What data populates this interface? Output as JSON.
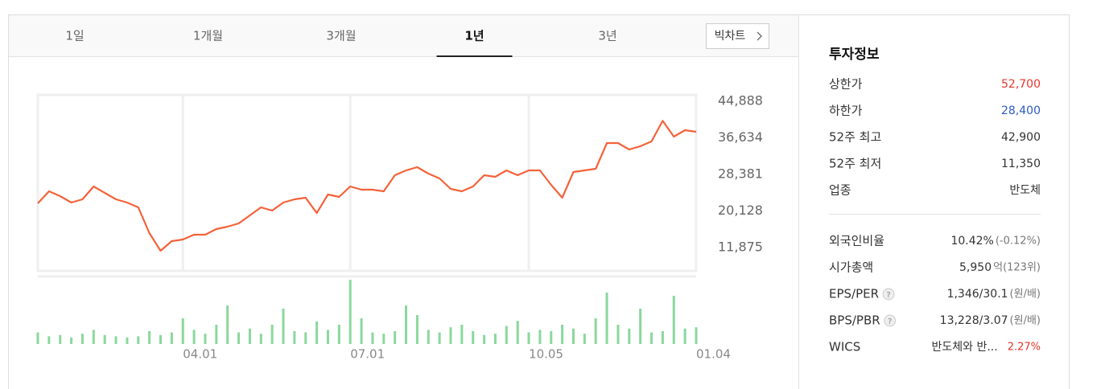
{
  "tabs": {
    "items": [
      "1일",
      "1개월",
      "3개월",
      "1년",
      "3년"
    ],
    "selected": 3,
    "button": "빅차트"
  },
  "chart_data": [
    {
      "type": "line",
      "color": "#f4623a",
      "categories": [
        null,
        null,
        null,
        null,
        null,
        null,
        null,
        null,
        null,
        null,
        null,
        null,
        null,
        "04.01",
        null,
        null,
        null,
        null,
        null,
        null,
        null,
        null,
        null,
        null,
        null,
        null,
        null,
        null,
        "07.01",
        null,
        null,
        null,
        null,
        null,
        null,
        null,
        null,
        null,
        null,
        null,
        null,
        null,
        null,
        null,
        "10.05",
        null,
        null,
        null,
        null,
        null,
        null,
        null,
        null,
        null,
        null,
        null,
        null,
        null,
        null,
        "01.04"
      ],
      "values": [
        21850,
        24570,
        23480,
        22030,
        22750,
        25660,
        24210,
        22750,
        22030,
        20940,
        15140,
        11150,
        13330,
        13690,
        14780,
        14780,
        16050,
        16590,
        17320,
        19130,
        20940,
        20220,
        22030,
        22750,
        23120,
        19670,
        23840,
        23300,
        25660,
        24940,
        24940,
        24570,
        28200,
        29290,
        30010,
        28560,
        27470,
        25110,
        24570,
        25660,
        28200,
        27840,
        29290,
        28200,
        29290,
        29290,
        26020,
        23120,
        28920,
        29290,
        29650,
        35460,
        35460,
        34010,
        34740,
        35820,
        40470,
        36910,
        38360,
        38000
      ],
      "ylim": [
        6615,
        46339
      ],
      "yticks": [
        {
          "value": 44888,
          "label": "44,888"
        },
        {
          "value": 36634,
          "label": "36,634"
        },
        {
          "value": 28381,
          "label": "28,381"
        },
        {
          "value": 20128,
          "label": "20,128"
        },
        {
          "value": 11875,
          "label": "11,875"
        }
      ],
      "grid": true
    },
    {
      "type": "bar",
      "color": "#8ad89c",
      "ylim": [
        0,
        100
      ],
      "values": [
        18,
        12,
        14,
        10,
        16,
        22,
        14,
        12,
        10,
        12,
        20,
        14,
        18,
        40,
        22,
        16,
        30,
        60,
        18,
        24,
        16,
        30,
        55,
        20,
        18,
        35,
        22,
        30,
        100,
        40,
        18,
        16,
        20,
        60,
        45,
        22,
        18,
        26,
        30,
        20,
        14,
        16,
        28,
        36,
        18,
        22,
        20,
        30,
        24,
        16,
        40,
        80,
        30,
        24,
        55,
        18,
        20,
        75,
        24,
        26
      ]
    }
  ],
  "info": {
    "title": "투자정보",
    "rows": [
      {
        "label": "상한가",
        "value": "52,700",
        "color": "#e5352b"
      },
      {
        "label": "하한가",
        "value": "28,400",
        "color": "#2c5bc6"
      },
      {
        "label": "52주 최고",
        "value": "42,900"
      },
      {
        "label": "52주 최저",
        "value": "11,350"
      },
      {
        "label": "업종",
        "value": "반도체"
      }
    ],
    "rows2": [
      {
        "label": "외국인비율",
        "value": "10.42%",
        "note": "(-0.12%)"
      },
      {
        "label": "시가총액",
        "value": "5,950",
        "note": "억(123위)"
      },
      {
        "label": "EPS/PER",
        "value": "1,346/30.1",
        "note": "(원/배)",
        "help": "?"
      },
      {
        "label": "BPS/PBR",
        "value": "13,228/3.07",
        "note": "(원/배)",
        "help": "?"
      },
      {
        "label": "WICS",
        "value": "반도체와 반...",
        "note": "2.27%",
        "note_color": "#e5352b"
      }
    ]
  }
}
